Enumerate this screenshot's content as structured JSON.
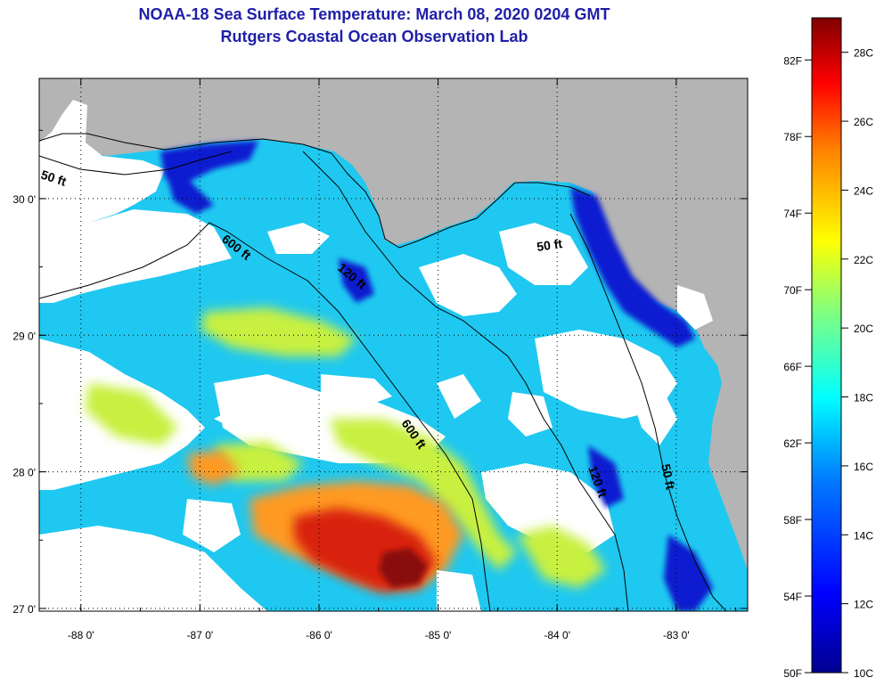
{
  "header": {
    "title": "NOAA-18 Sea Surface Temperature:  March 08, 2020 0204 GMT",
    "subtitle": "Rutgers Coastal Ocean Observation Lab"
  },
  "map": {
    "lat_ticks": [
      {
        "value": 30,
        "label": "30 0'"
      },
      {
        "value": 29,
        "label": "29 0'"
      },
      {
        "value": 28,
        "label": "28 0'"
      },
      {
        "value": 27,
        "label": "27 0'"
      }
    ],
    "lon_ticks": [
      {
        "value": -88,
        "label": "-88 0'"
      },
      {
        "value": -87,
        "label": "-87 0'"
      },
      {
        "value": -86,
        "label": "-86 0'"
      },
      {
        "value": -85,
        "label": "-85 0'"
      },
      {
        "value": -84,
        "label": "-84 0'"
      },
      {
        "value": -83,
        "label": "-83 0'"
      }
    ],
    "lon_range": [
      -88.35,
      -82.4
    ],
    "lat_range": [
      26.98,
      30.88
    ],
    "contour_labels": [
      "50 ft",
      "600 ft",
      "120 ft",
      "600 ft",
      "50 ft",
      "120 ft",
      "50 ft"
    ],
    "colors": {
      "land": "#b4b4b4",
      "cloud": "#ffffff",
      "gridline": "#000000"
    }
  },
  "colorbar": {
    "fahrenheit_labels": [
      "82F",
      "78F",
      "74F",
      "70F",
      "66F",
      "62F",
      "58F",
      "54F",
      "50F"
    ],
    "celsius_labels": [
      "28C",
      "26C",
      "24C",
      "22C",
      "20C",
      "18C",
      "16C",
      "14C",
      "12C",
      "10C"
    ],
    "range_c": [
      10,
      29
    ],
    "colors": [
      "#00008f",
      "#0000ff",
      "#0080ff",
      "#00ffff",
      "#80ff80",
      "#ffff00",
      "#ff8000",
      "#ff0000",
      "#800000"
    ]
  }
}
